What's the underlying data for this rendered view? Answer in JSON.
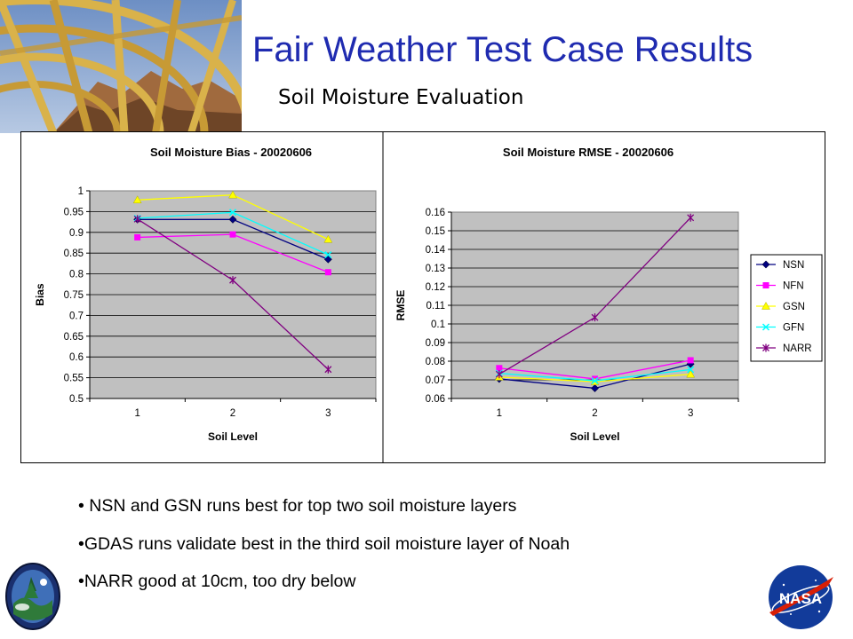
{
  "slide": {
    "title": "Fair Weather Test Case Results",
    "subtitle": "Soil Moisture Evaluation"
  },
  "bullets": [
    "• NSN and GSN runs best for top two soil moisture layers",
    "•GDAS runs validate best in the third soil moisture layer of Noah",
    "•NARR good at 10cm, too dry below"
  ],
  "logos": [
    "mission-patch-logo",
    "nasa-logo"
  ],
  "colors": {
    "title": "#1f2bb0",
    "plot_area": "#c0c0c0",
    "NSN": "#000080",
    "NFN": "#ff00ff",
    "GSN": "#ffff00",
    "GFN": "#00ffff",
    "NARR": "#800080"
  },
  "chart_data": [
    {
      "type": "line",
      "title": "Soil Moisture Bias - 20020606",
      "xlabel": "Soil Level",
      "ylabel": "Bias",
      "x": [
        "1",
        "2",
        "3"
      ],
      "ylim": [
        0.5,
        1.0
      ],
      "yticks": [
        "0.5",
        "0.55",
        "0.6",
        "0.65",
        "0.7",
        "0.75",
        "0.8",
        "0.85",
        "0.9",
        "0.95",
        "1"
      ],
      "grid": true,
      "legend": "none",
      "series": [
        {
          "name": "NSN",
          "values": [
            0.931,
            0.931,
            0.835
          ]
        },
        {
          "name": "NFN",
          "values": [
            0.888,
            0.895,
            0.804
          ]
        },
        {
          "name": "GSN",
          "values": [
            0.978,
            0.99,
            0.883
          ]
        },
        {
          "name": "GFN",
          "values": [
            0.934,
            0.948,
            0.846
          ]
        },
        {
          "name": "NARR",
          "values": [
            0.932,
            0.785,
            0.57
          ]
        }
      ]
    },
    {
      "type": "line",
      "title": "Soil Moisture RMSE - 20020606",
      "xlabel": "Soil Level",
      "ylabel": "RMSE",
      "x": [
        "1",
        "2",
        "3"
      ],
      "ylim": [
        0.06,
        0.16
      ],
      "yticks": [
        "0.06",
        "0.07",
        "0.08",
        "0.09",
        "0.1",
        "0.11",
        "0.12",
        "0.13",
        "0.14",
        "0.15",
        "0.16"
      ],
      "grid": true,
      "legend": "right",
      "series": [
        {
          "name": "NSN",
          "values": [
            0.0705,
            0.0655,
            0.0785
          ]
        },
        {
          "name": "NFN",
          "values": [
            0.0763,
            0.0705,
            0.0805
          ]
        },
        {
          "name": "GSN",
          "values": [
            0.0715,
            0.069,
            0.073
          ]
        },
        {
          "name": "GFN",
          "values": [
            0.0735,
            0.0695,
            0.0755
          ]
        },
        {
          "name": "NARR",
          "values": [
            0.073,
            0.1035,
            0.157
          ]
        }
      ]
    }
  ]
}
